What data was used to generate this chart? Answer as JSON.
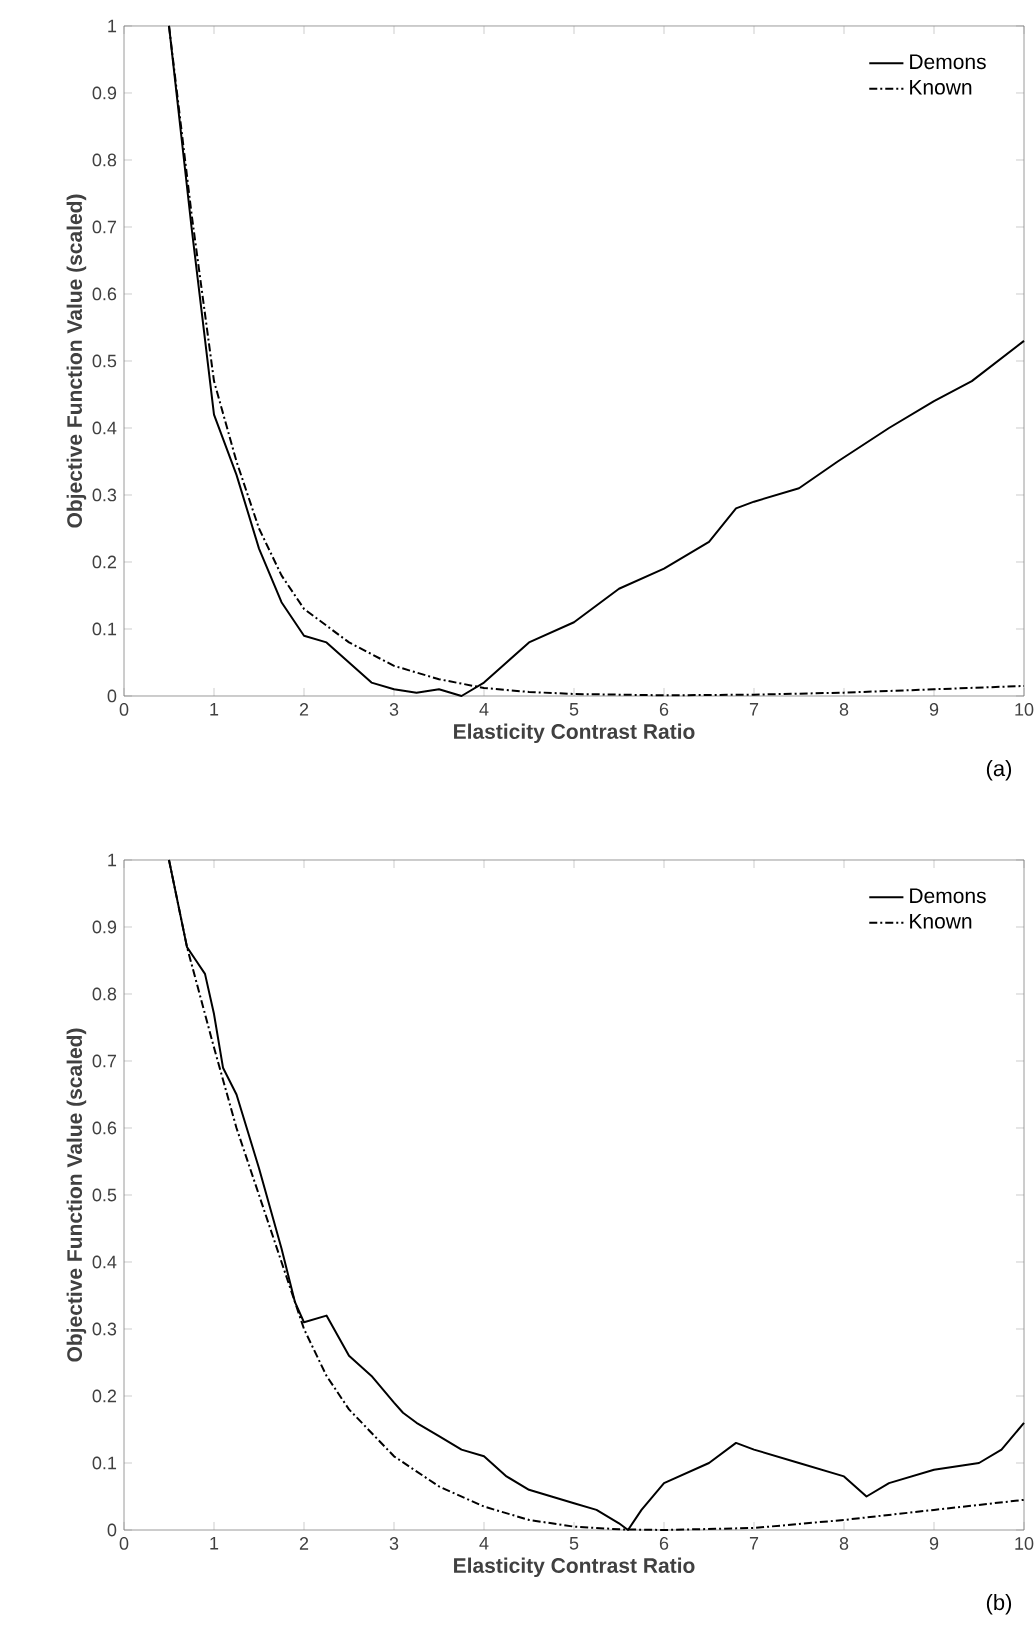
{
  "chart_data": [
    {
      "type": "line",
      "xlabel": "Elasticity Contrast Ratio",
      "ylabel": "Objective Function Value (scaled)",
      "annotations": [
        "(a)"
      ],
      "xlim": [
        0,
        10
      ],
      "ylim": [
        0,
        1
      ],
      "xticks": [
        0,
        1,
        2,
        3,
        4,
        5,
        6,
        7,
        8,
        9,
        10
      ],
      "yticks": [
        0,
        0.1,
        0.2,
        0.3,
        0.4,
        0.5,
        0.6,
        0.7,
        0.8,
        0.9,
        1
      ],
      "legend": "top right",
      "grid": false,
      "series": [
        {
          "name": "Demons",
          "color": "#000000",
          "line_style": "solid",
          "x": [
            0.5,
            0.75,
            1,
            1.25,
            1.5,
            1.75,
            2,
            2.25,
            2.5,
            2.75,
            3,
            3.25,
            3.5,
            3.75,
            4,
            4.25,
            4.5,
            5,
            5.5,
            6,
            6.5,
            6.8,
            7,
            7.5,
            7.93,
            8.5,
            9,
            9.42,
            10
          ],
          "values": [
            1.0,
            0.7,
            0.42,
            0.33,
            0.22,
            0.14,
            0.09,
            0.08,
            0.05,
            0.02,
            0.01,
            0.005,
            0.01,
            0.0,
            0.02,
            0.05,
            0.08,
            0.11,
            0.16,
            0.19,
            0.23,
            0.28,
            0.29,
            0.31,
            0.35,
            0.4,
            0.44,
            0.47,
            0.53
          ]
        },
        {
          "name": "Known",
          "color": "#000000",
          "line_style": "dashdot",
          "x": [
            0.5,
            0.75,
            1,
            1.25,
            1.5,
            1.75,
            2,
            2.5,
            3,
            3.5,
            4,
            4.5,
            5,
            6,
            7,
            8,
            9,
            10
          ],
          "values": [
            1.0,
            0.72,
            0.47,
            0.35,
            0.25,
            0.18,
            0.13,
            0.08,
            0.045,
            0.025,
            0.012,
            0.006,
            0.003,
            0.001,
            0.002,
            0.005,
            0.01,
            0.015
          ]
        }
      ]
    },
    {
      "type": "line",
      "xlabel": "Elasticity Contrast Ratio",
      "ylabel": "Objective Function Value (scaled)",
      "annotations": [
        "(b)"
      ],
      "xlim": [
        0,
        10
      ],
      "ylim": [
        0,
        1
      ],
      "xticks": [
        0,
        1,
        2,
        3,
        4,
        5,
        6,
        7,
        8,
        9,
        10
      ],
      "yticks": [
        0,
        0.1,
        0.2,
        0.3,
        0.4,
        0.5,
        0.6,
        0.7,
        0.8,
        0.9,
        1
      ],
      "legend": "top right",
      "grid": false,
      "series": [
        {
          "name": "Demons",
          "color": "#000000",
          "line_style": "solid",
          "x": [
            0.5,
            0.7,
            0.8,
            0.9,
            1,
            1.1,
            1.25,
            1.5,
            1.75,
            1.9,
            2,
            2.25,
            2.5,
            2.75,
            3,
            3.1,
            3.25,
            3.5,
            3.75,
            4,
            4.25,
            4.5,
            4.75,
            5,
            5.25,
            5.5,
            5.6,
            5.75,
            6,
            6.5,
            6.8,
            7,
            7.5,
            8,
            8.25,
            8.5,
            9,
            9.5,
            9.75,
            10
          ],
          "values": [
            1.0,
            0.87,
            0.85,
            0.83,
            0.77,
            0.69,
            0.65,
            0.54,
            0.42,
            0.34,
            0.31,
            0.32,
            0.26,
            0.23,
            0.19,
            0.175,
            0.16,
            0.14,
            0.12,
            0.11,
            0.08,
            0.06,
            0.05,
            0.04,
            0.03,
            0.01,
            0.0,
            0.03,
            0.07,
            0.1,
            0.13,
            0.12,
            0.1,
            0.08,
            0.05,
            0.07,
            0.09,
            0.1,
            0.12,
            0.16
          ]
        },
        {
          "name": "Known",
          "color": "#000000",
          "line_style": "dashdot",
          "x": [
            0.5,
            0.7,
            1,
            1.25,
            1.5,
            1.75,
            2,
            2.25,
            2.5,
            3,
            3.5,
            4,
            4.5,
            5,
            5.5,
            6,
            7,
            8,
            9,
            10
          ],
          "values": [
            1.0,
            0.87,
            0.72,
            0.6,
            0.5,
            0.4,
            0.3,
            0.23,
            0.18,
            0.11,
            0.065,
            0.035,
            0.015,
            0.005,
            0.001,
            0.0,
            0.003,
            0.015,
            0.03,
            0.045
          ]
        }
      ]
    }
  ]
}
